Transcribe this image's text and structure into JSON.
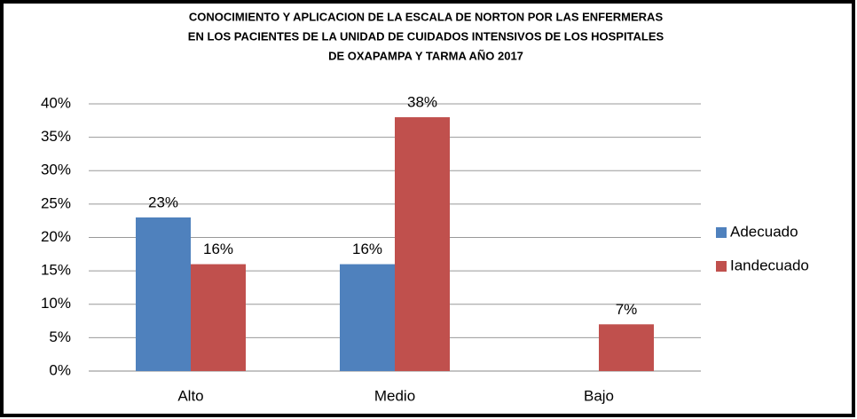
{
  "chart_data": {
    "type": "bar",
    "title": [
      "CONOCIMIENTO Y APLICACION DE LA  ESCALA DE NORTON  POR LAS ENFERMERAS",
      "EN LOS PACIENTES   DE LA UNIDAD  DE CUIDADOS INTENSIVOS DE LOS HOSPITALES",
      "DE OXAPAMPA Y TARMA  AÑO    2017"
    ],
    "categories": [
      "Alto",
      "Medio",
      "Bajo"
    ],
    "series": [
      {
        "name": "Adecuado",
        "color": "#4f81bd",
        "values": [
          23,
          16,
          null
        ],
        "value_labels": [
          "23%",
          "16%",
          null
        ]
      },
      {
        "name": "Iandecuado",
        "color": "#c0504d",
        "values": [
          16,
          38,
          7
        ],
        "value_labels": [
          "16%",
          "38%",
          "7%"
        ]
      }
    ],
    "ylim": [
      0,
      40
    ],
    "yticks": [
      {
        "value": 0,
        "label": "0%"
      },
      {
        "value": 5,
        "label": "5%"
      },
      {
        "value": 10,
        "label": "10%"
      },
      {
        "value": 15,
        "label": "15%"
      },
      {
        "value": 20,
        "label": "20%"
      },
      {
        "value": 25,
        "label": "25%"
      },
      {
        "value": 30,
        "label": "30%"
      },
      {
        "value": 35,
        "label": "35%"
      },
      {
        "value": 40,
        "label": "40%"
      }
    ],
    "grid": true,
    "legend": "right"
  }
}
